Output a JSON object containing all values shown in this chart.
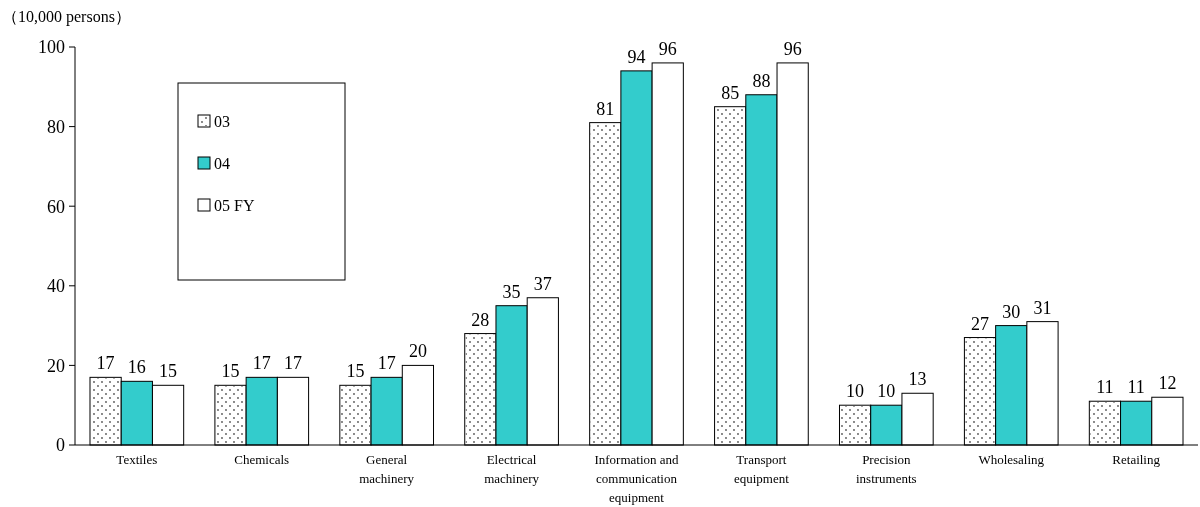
{
  "chart_data": {
    "type": "bar",
    "ylabel": "（10,000 persons）",
    "categories": [
      "Textiles",
      "Chemicals",
      "General machinery",
      "Electrical machinery",
      "Information and communication equipment",
      "Transport equipment",
      "Precision instruments",
      "Wholesaling",
      "Retailing"
    ],
    "series": [
      {
        "name": "03",
        "color": "#ffffff",
        "values": [
          17,
          15,
          15,
          28,
          81,
          85,
          10,
          27,
          11
        ]
      },
      {
        "name": "04",
        "color": "#33cccc",
        "values": [
          16,
          17,
          17,
          35,
          94,
          88,
          10,
          30,
          11
        ]
      },
      {
        "name": "05 FY",
        "color": "#ffffff",
        "values": [
          15,
          17,
          20,
          37,
          96,
          96,
          13,
          31,
          12
        ]
      }
    ],
    "ylim": [
      0,
      100
    ],
    "yticks": [
      0,
      20,
      40,
      60,
      80,
      100
    ],
    "data_labels": true,
    "legend": "top left",
    "grid": false
  }
}
